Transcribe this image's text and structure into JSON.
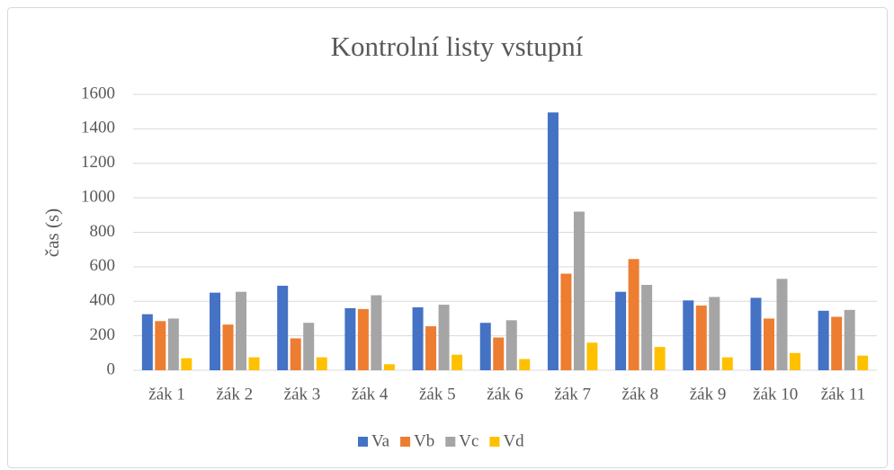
{
  "chart_data": {
    "type": "bar",
    "title": "Kontrolní listy vstupní",
    "y_label": "čas (s)",
    "categories": [
      "žák 1",
      "žák 2",
      "žák 3",
      "žák 4",
      "žák 5",
      "žák 6",
      "žák 7",
      "žák 8",
      "žák 9",
      "žák 10",
      "žák 11"
    ],
    "series": [
      {
        "name": "Va",
        "color": "#4472c4",
        "values": [
          325,
          450,
          490,
          360,
          365,
          275,
          1495,
          455,
          405,
          420,
          345
        ]
      },
      {
        "name": "Vb",
        "color": "#ed7d31",
        "values": [
          285,
          265,
          185,
          355,
          255,
          190,
          560,
          645,
          375,
          300,
          310
        ]
      },
      {
        "name": "Vc",
        "color": "#a5a5a5",
        "values": [
          300,
          455,
          275,
          435,
          380,
          290,
          920,
          495,
          425,
          530,
          350
        ]
      },
      {
        "name": "Vd",
        "color": "#ffc000",
        "values": [
          70,
          75,
          75,
          35,
          90,
          65,
          160,
          135,
          75,
          100,
          85
        ]
      }
    ],
    "ylim": [
      0,
      1600
    ],
    "yticks": [
      0,
      200,
      400,
      600,
      800,
      1000,
      1200,
      1400,
      1600
    ],
    "grid": true,
    "legend": "bottom"
  }
}
